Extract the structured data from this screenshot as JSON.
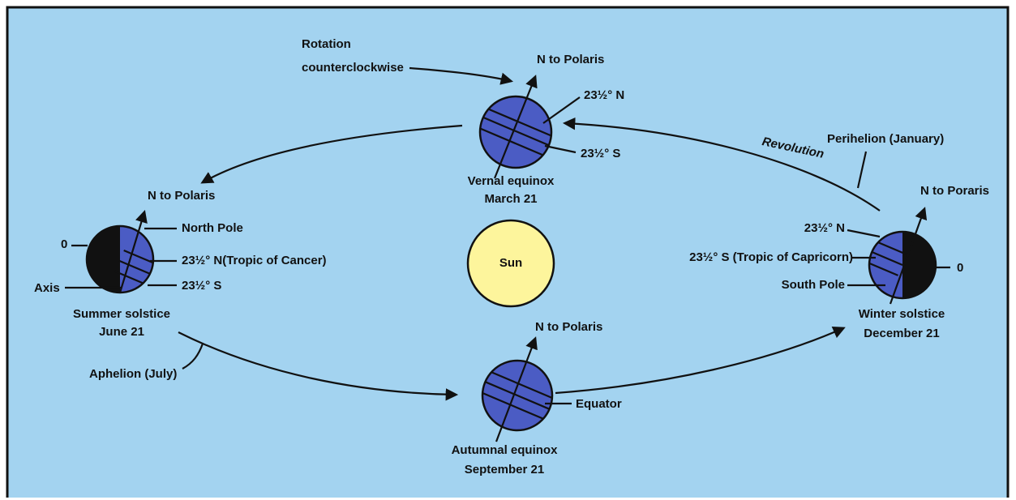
{
  "rotation": [
    "Rotation",
    "counterclockwise"
  ],
  "revolution": "Revolution",
  "perihelion": "Perihelion (January)",
  "aphelion": "Aphelion (July)",
  "sun": "Sun",
  "vernal": {
    "north": "N to Polaris",
    "lat_n": "23½° N",
    "lat_s": "23½° S",
    "caption": [
      "Vernal equinox",
      "March 21"
    ]
  },
  "summer": {
    "north": "N to Polaris",
    "pole": "North Pole",
    "zero": "0",
    "lat_n": "23½° N(Tropic of Cancer)",
    "axis": "Axis",
    "lat_s": "23½° S",
    "caption": [
      "Summer solstice",
      "June 21"
    ]
  },
  "winter": {
    "north": "N to Poraris",
    "lat_n": "23½° N",
    "lat_s": "23½° S (Tropic of Capricorn)",
    "zero": "0",
    "pole": "South Pole",
    "caption": [
      "Winter solstice",
      "December 21"
    ]
  },
  "autumnal": {
    "north": "N to Polaris",
    "equator": "Equator",
    "caption": [
      "Autumnal equinox",
      "September 21"
    ]
  }
}
